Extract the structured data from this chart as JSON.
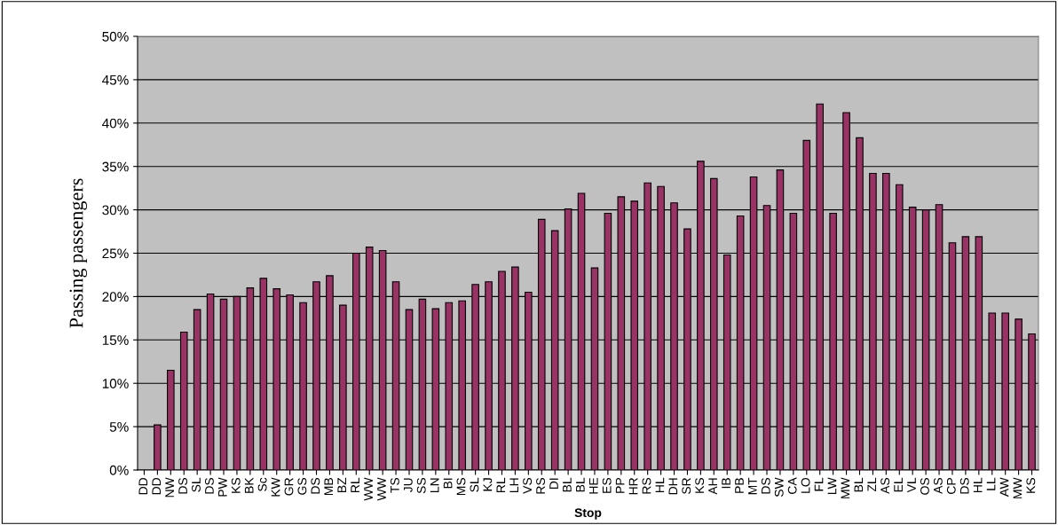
{
  "chart_data": {
    "type": "bar",
    "xlabel": "Stop",
    "ylabel": "Passing passengers",
    "color": "#993366",
    "grid": "y",
    "legend": false,
    "categories": [
      "DD",
      "DD",
      "NW",
      "DS",
      "SL",
      "DS",
      "PW",
      "KS",
      "BK",
      "Sc",
      "KW",
      "GR",
      "GS",
      "DS",
      "MB",
      "BZ",
      "RL",
      "WW",
      "WW",
      "TS",
      "JU",
      "SS",
      "LN",
      "BI",
      "MS",
      "SL",
      "KJ",
      "RL",
      "LH",
      "VS",
      "RS",
      "DI",
      "BL",
      "BL",
      "HE",
      "ES",
      "PP",
      "HR",
      "RS",
      "HL",
      "DH",
      "SR",
      "KS",
      "AH",
      "IB",
      "PB",
      "MT",
      "DS",
      "SW",
      "CA",
      "LO",
      "FL",
      "LW",
      "MW",
      "BL",
      "ZL",
      "AS",
      "EL",
      "VL",
      "OS",
      "AS",
      "CP",
      "DS",
      "HL",
      "LL",
      "AW",
      "MW",
      "KS"
    ],
    "values": [
      0,
      5.2,
      11.5,
      15.9,
      18.5,
      20.3,
      19.7,
      20.0,
      21.0,
      22.1,
      20.9,
      20.2,
      19.3,
      21.7,
      22.4,
      19.0,
      25.0,
      25.7,
      25.3,
      21.7,
      18.5,
      19.7,
      18.6,
      19.3,
      19.5,
      21.4,
      21.7,
      22.9,
      23.4,
      20.5,
      28.9,
      27.6,
      30.1,
      31.9,
      23.3,
      29.6,
      31.5,
      31.0,
      33.1,
      32.7,
      30.8,
      27.8,
      35.6,
      33.6,
      24.8,
      29.3,
      33.8,
      30.5,
      34.6,
      29.6,
      38.0,
      42.2,
      29.6,
      41.2,
      38.3,
      34.2,
      34.2,
      32.9,
      30.3,
      30.0,
      30.6,
      26.2,
      26.9,
      26.9,
      18.1,
      18.1,
      17.4,
      15.7
    ],
    "ylim": [
      0,
      50
    ],
    "yticks": [
      {
        "value": 0,
        "label": "0%"
      },
      {
        "value": 5,
        "label": "5%"
      },
      {
        "value": 10,
        "label": "10%"
      },
      {
        "value": 15,
        "label": "15%"
      },
      {
        "value": 20,
        "label": "20%"
      },
      {
        "value": 25,
        "label": "25%"
      },
      {
        "value": 30,
        "label": "30%"
      },
      {
        "value": 35,
        "label": "35%"
      },
      {
        "value": 40,
        "label": "40%"
      },
      {
        "value": 45,
        "label": "45%"
      },
      {
        "value": 50,
        "label": "50%"
      }
    ]
  }
}
